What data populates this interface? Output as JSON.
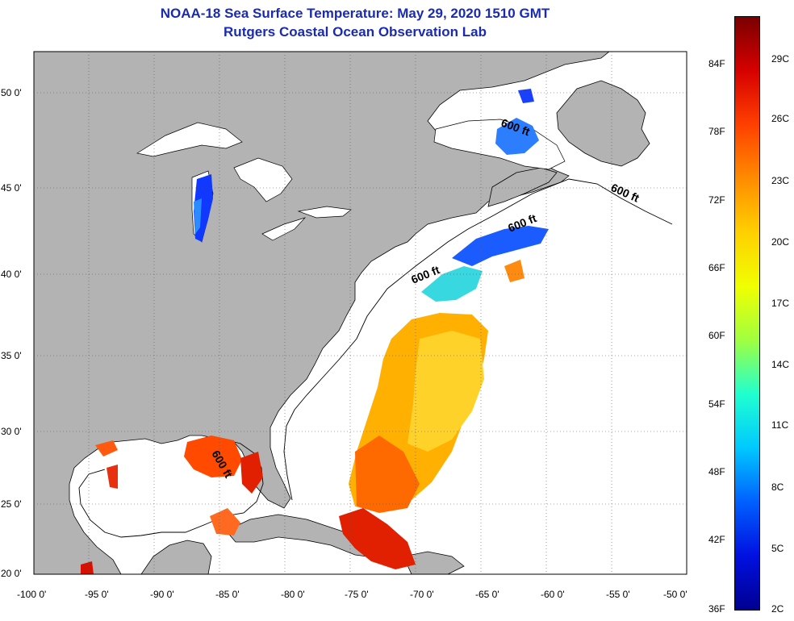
{
  "header": {
    "title_line1": "NOAA-18 Sea Surface Temperature:  May 29, 2020 1510 GMT",
    "title_line2": "Rutgers Coastal Ocean Observation Lab"
  },
  "map": {
    "lat_labels": [
      "50 0'",
      "45 0'",
      "40 0'",
      "35 0'",
      "30 0'",
      "25 0'",
      "20 0'"
    ],
    "lon_labels": [
      "-100 0'",
      "-95 0'",
      "-90 0'",
      "-85 0'",
      "-80 0'",
      "-75 0'",
      "-70 0'",
      "-65 0'",
      "-60 0'",
      "-55 0'",
      "-50 0'"
    ],
    "contour_label": "600 ft",
    "colors": {
      "land": "#b3b3b3",
      "ocean": "#ffffff",
      "coast": "#000000"
    }
  },
  "colorbar": {
    "fahrenheit_labels": [
      "84F",
      "78F",
      "72F",
      "66F",
      "60F",
      "54F",
      "48F",
      "42F",
      "36F"
    ],
    "celsius_labels": [
      "29C",
      "26C",
      "23C",
      "20C",
      "17C",
      "14C",
      "11C",
      "8C",
      "5C",
      "2C"
    ],
    "colors": [
      "#7a0000",
      "#d60000",
      "#ff4000",
      "#ff8c00",
      "#ffd000",
      "#f0ff00",
      "#a0ff40",
      "#20ffd0",
      "#00c8ff",
      "#0060ff",
      "#0010e0",
      "#000090"
    ]
  }
}
